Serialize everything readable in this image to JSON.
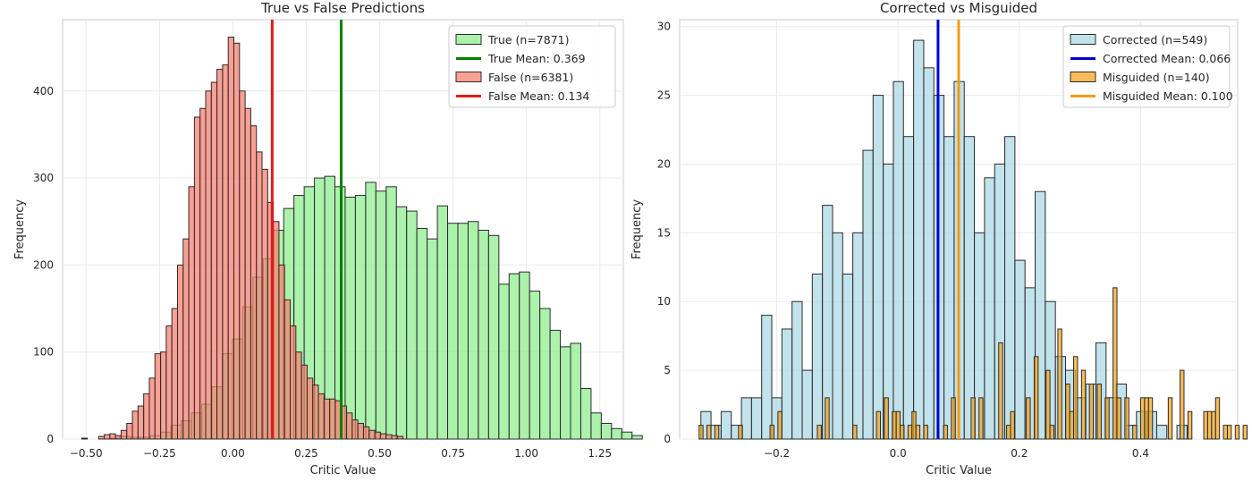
{
  "chart_data": [
    {
      "type": "histogram",
      "title": "True vs False Predictions",
      "xlabel": "Critic Value",
      "ylabel": "Frequency",
      "xlim": [
        -0.58,
        1.33
      ],
      "ylim": [
        0,
        482
      ],
      "xticks": [
        -0.5,
        -0.25,
        0.0,
        0.25,
        0.5,
        0.75,
        1.0,
        1.25
      ],
      "xtick_labels": [
        "−0.50",
        "−0.25",
        "0.00",
        "0.25",
        "0.50",
        "0.75",
        "1.00",
        "1.25"
      ],
      "yticks": [
        0,
        100,
        200,
        300,
        400
      ],
      "ytick_labels": [
        "0",
        "100",
        "200",
        "300",
        "400"
      ],
      "grid": true,
      "legend_position": "top-right",
      "series": [
        {
          "name": "True (n=7871)",
          "color": "#90ee90",
          "bin_start": -0.49,
          "bin_width": 0.0349,
          "counts": [
            0,
            0,
            1,
            3,
            2,
            2,
            4,
            8,
            16,
            21,
            30,
            40,
            60,
            98,
            115,
            152,
            186,
            207,
            240,
            265,
            280,
            290,
            300,
            302,
            290,
            278,
            280,
            295,
            285,
            290,
            267,
            262,
            242,
            230,
            268,
            248,
            248,
            250,
            240,
            234,
            178,
            190,
            192,
            170,
            150,
            125,
            106,
            110,
            58,
            30,
            18,
            12,
            8,
            4,
            0
          ]
        },
        {
          "name": "True Mean: 0.369",
          "color": "#008000",
          "kind": "vline",
          "x": 0.369
        },
        {
          "name": "False (n=6381)",
          "color": "#fa8072",
          "bin_start": -0.515,
          "bin_width": 0.0192,
          "counts": [
            1,
            0,
            0,
            3,
            5,
            6,
            4,
            10,
            18,
            32,
            38,
            52,
            70,
            98,
            100,
            130,
            150,
            200,
            230,
            290,
            370,
            380,
            400,
            410,
            425,
            430,
            462,
            455,
            400,
            380,
            360,
            330,
            310,
            272,
            250,
            200,
            160,
            130,
            100,
            85,
            70,
            62,
            52,
            46,
            46,
            44,
            38,
            30,
            22,
            18,
            14,
            10,
            8,
            6,
            5,
            4,
            3
          ]
        },
        {
          "name": "False Mean: 0.134",
          "color": "#e41a1c",
          "kind": "vline",
          "x": 0.134
        }
      ]
    },
    {
      "type": "histogram",
      "title": "Corrected vs Misguided",
      "xlabel": "Critic Value",
      "ylabel": "Frequency",
      "xlim": [
        -0.36,
        0.56
      ],
      "ylim": [
        0,
        30.5
      ],
      "xticks": [
        -0.2,
        0.0,
        0.2,
        0.4
      ],
      "xtick_labels": [
        "−0.2",
        "0.0",
        "0.2",
        "0.4"
      ],
      "yticks": [
        0,
        5,
        10,
        15,
        20,
        25,
        30
      ],
      "ytick_labels": [
        "0",
        "5",
        "10",
        "15",
        "20",
        "25",
        "30"
      ],
      "grid": true,
      "legend_position": "top-right",
      "series": [
        {
          "name": "Corrected (n=549)",
          "color": "#add8e6",
          "bin_start": -0.325,
          "bin_width": 0.0167,
          "counts": [
            2,
            1,
            2,
            1,
            3,
            3,
            9,
            3,
            8,
            10,
            5,
            12,
            17,
            15,
            12,
            15,
            21,
            25,
            20,
            26,
            22,
            29,
            27,
            25,
            22,
            26,
            22,
            15,
            19,
            20,
            22,
            13,
            11,
            18,
            10,
            6,
            5,
            3,
            4,
            7,
            3,
            4,
            1,
            2,
            2,
            1,
            0,
            1
          ]
        },
        {
          "name": "Corrected Mean: 0.066",
          "color": "#0000cd",
          "kind": "vline",
          "x": 0.066
        },
        {
          "name": "Misguided (n=140)",
          "color": "#f5a623",
          "bin_start": -0.328,
          "bin_width": 0.0065,
          "counts": [
            1,
            0,
            1,
            0,
            1,
            0,
            0,
            0,
            0,
            0,
            1,
            0,
            0,
            0,
            0,
            0,
            0,
            0,
            1,
            0,
            2,
            0,
            0,
            0,
            0,
            0,
            0,
            0,
            0,
            0,
            1,
            0,
            3,
            0,
            0,
            0,
            0,
            0,
            0,
            1,
            0,
            0,
            0,
            0,
            0,
            2,
            0,
            3,
            0,
            2,
            2,
            1,
            0,
            1,
            2,
            1,
            0,
            1,
            0,
            0,
            0,
            0,
            1,
            0,
            3,
            0,
            0,
            0,
            0,
            3,
            0,
            3,
            0,
            0,
            0,
            0,
            7,
            0,
            1,
            2,
            0,
            0,
            0,
            3,
            0,
            6,
            0,
            0,
            5,
            1,
            0,
            8,
            0,
            4,
            2,
            6,
            0,
            5,
            0,
            4,
            0,
            4,
            0,
            3,
            0,
            11,
            3,
            0,
            3,
            0,
            1,
            0,
            3,
            3,
            3,
            0,
            0,
            0,
            0,
            3,
            0,
            0,
            5,
            0,
            2,
            0,
            0,
            0,
            2,
            2,
            2,
            3,
            0,
            1,
            1,
            0,
            1,
            0,
            1
          ]
        },
        {
          "name": "Misguided Mean: 0.100",
          "color": "#f39c12",
          "kind": "vline",
          "x": 0.1
        }
      ]
    }
  ]
}
